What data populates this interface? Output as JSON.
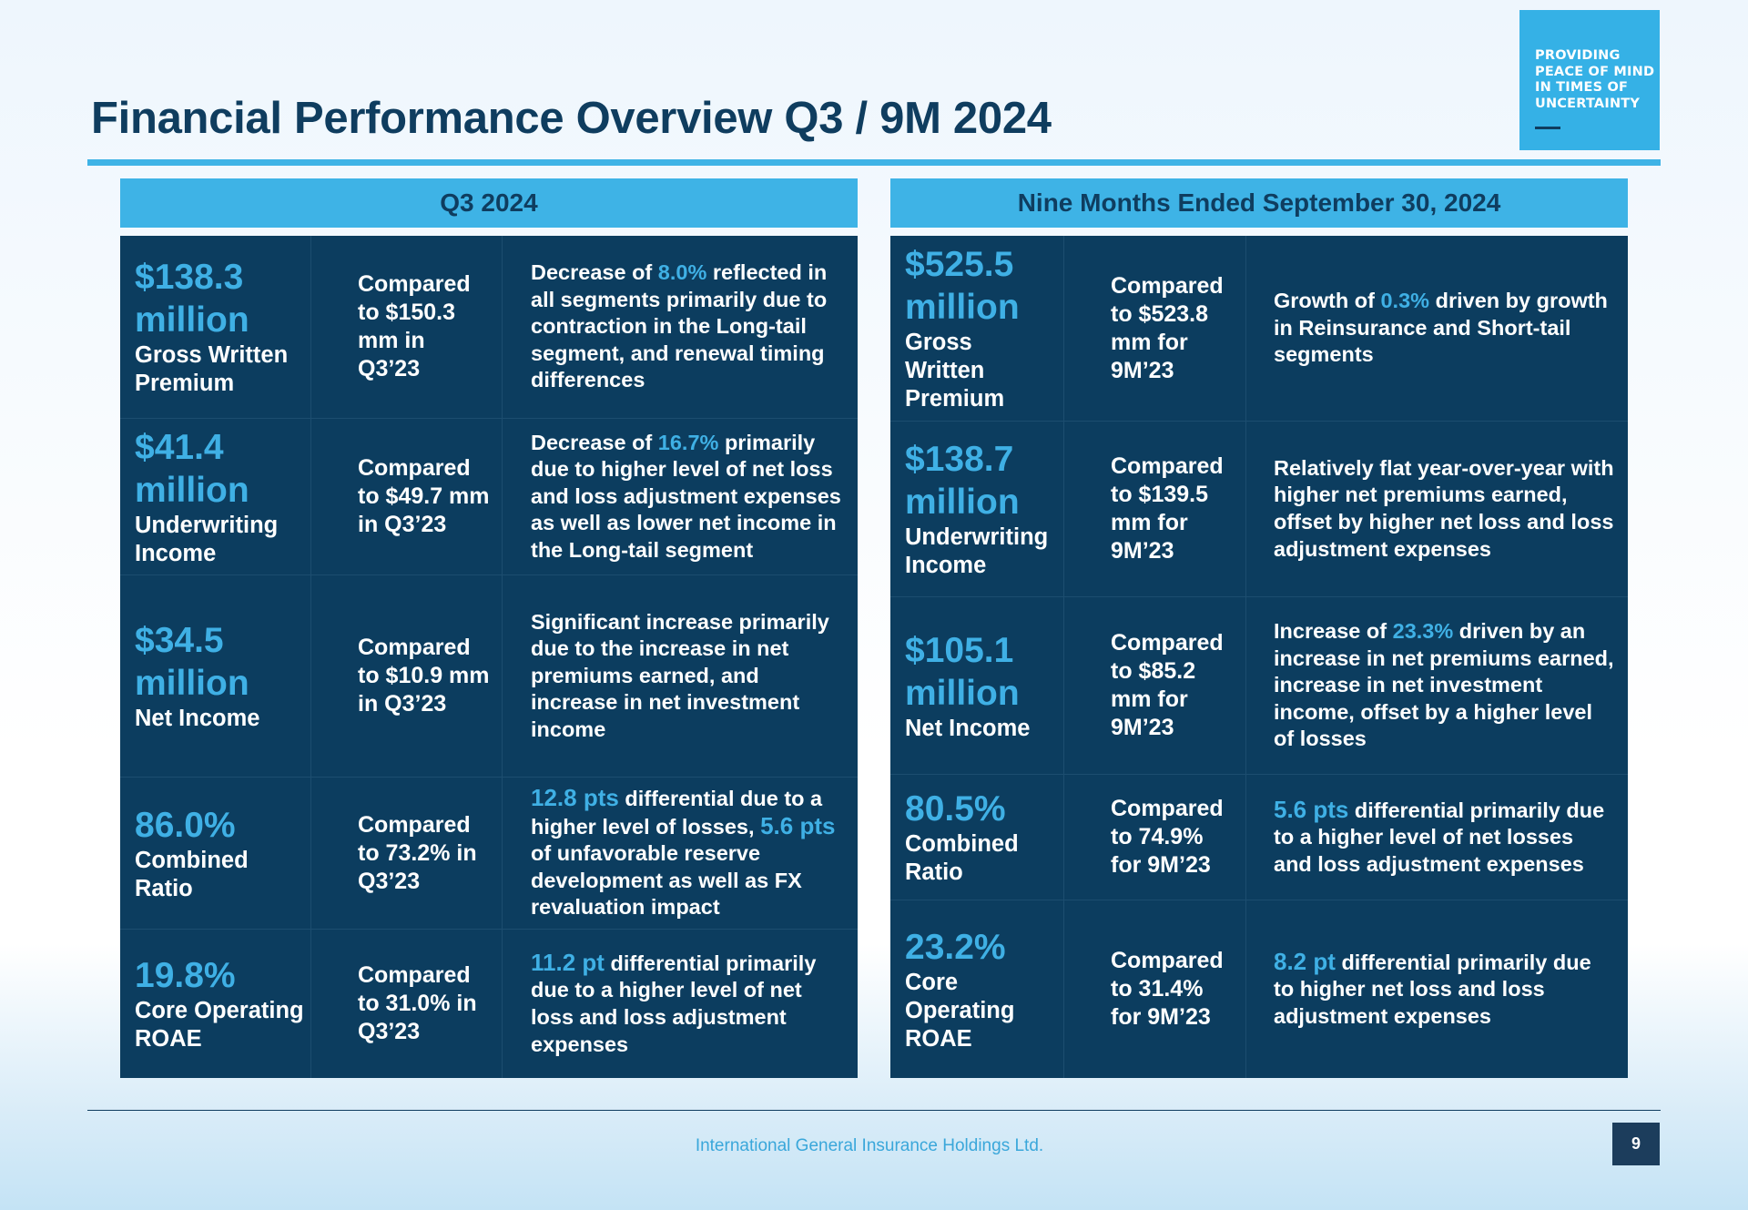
{
  "title": "Financial Performance Overview Q3 / 9M 2024",
  "badge": {
    "text": "PROVIDING\nPEACE OF MIND\nIN TIMES OF\nUNCERTAINTY"
  },
  "left_panel": {
    "header": "Q3 2024",
    "rows": [
      {
        "value": "$138.3 million",
        "label": "Gross Written Premium",
        "comparison": "Compared to $150.3 mm in Q3’23",
        "pre": "Decrease of ",
        "hl1": "8.0%",
        "mid": " reflected in all segments primarily due to contraction in the Long-tail segment, and renewal timing differences",
        "hl2": "",
        "post": ""
      },
      {
        "value": "$41.4 million",
        "label": "Underwriting Income",
        "comparison": "Compared to $49.7 mm in Q3’23",
        "pre": "Decrease of ",
        "hl1": "16.7%",
        "mid": " primarily due to higher level of net loss and loss adjustment expenses as well as lower net income in the Long-tail segment",
        "hl2": "",
        "post": ""
      },
      {
        "value": "$34.5 million",
        "label": "Net Income",
        "comparison": "Compared to $10.9 mm in Q3’23",
        "pre": "Significant increase primarily due to the increase in net premiums earned, and increase in net investment income",
        "hl1": "",
        "mid": "",
        "hl2": "",
        "post": ""
      },
      {
        "value": "86.0%",
        "label": "Combined Ratio",
        "comparison": "Compared to 73.2% in Q3’23",
        "pre": "",
        "hl1": "12.8 pts",
        "mid": " differential due to a higher level of losses, ",
        "hl2": "5.6 pts",
        "post": " of unfavorable reserve development as well as FX revaluation impact"
      },
      {
        "value": "19.8%",
        "label": "Core Operating ROAE",
        "comparison": "Compared to 31.0% in Q3’23",
        "pre": "",
        "hl1": "11.2 pt",
        "mid": " differential primarily due to a higher level of net loss and loss adjustment expenses",
        "hl2": "",
        "post": ""
      }
    ]
  },
  "right_panel": {
    "header": "Nine Months Ended September 30, 2024",
    "rows": [
      {
        "value": "$525.5 million",
        "label": "Gross Written Premium",
        "comparison": "Compared to $523.8 mm for 9M’23",
        "pre": "Growth of ",
        "hl1": "0.3%",
        "mid": " driven by growth in Reinsurance and Short-tail segments",
        "hl2": "",
        "post": ""
      },
      {
        "value": "$138.7 million",
        "label": "Underwriting Income",
        "comparison": "Compared to $139.5 mm for 9M’23",
        "pre": "Relatively flat year-over-year with higher net premiums earned, offset by higher net loss and loss adjustment expenses",
        "hl1": "",
        "mid": "",
        "hl2": "",
        "post": ""
      },
      {
        "value": "$105.1 million",
        "label": "Net Income",
        "comparison": "Compared to $85.2 mm for 9M’23",
        "pre": "Increase of ",
        "hl1": "23.3%",
        "mid": " driven by an increase in net premiums earned, increase in net investment income, offset by a higher level of losses",
        "hl2": "",
        "post": ""
      },
      {
        "value": "80.5%",
        "label": "Combined Ratio",
        "comparison": "Compared to 74.9% for 9M’23",
        "pre": "",
        "hl1": "5.6 pts",
        "mid": " differential primarily due to a higher level of net losses and loss adjustment expenses",
        "hl2": "",
        "post": ""
      },
      {
        "value": "23.2%",
        "label": "Core Operating ROAE",
        "comparison": "Compared to 31.4% for 9M’23",
        "pre": "",
        "hl1": "8.2 pt",
        "mid": " differential primarily due to higher net loss and loss adjustment expenses",
        "hl2": "",
        "post": ""
      }
    ]
  },
  "footer": {
    "company": "International General Insurance Holdings Ltd.",
    "page_number": "9"
  }
}
